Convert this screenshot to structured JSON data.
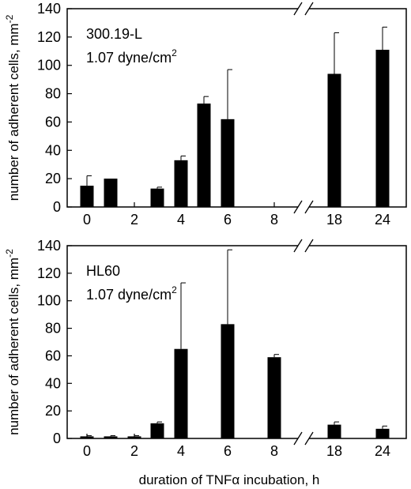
{
  "xlabel": "duration of TNFα incubation, h",
  "chart_data": [
    {
      "type": "bar",
      "annotation": {
        "name": "300.19-L",
        "shear_value": "1.07 dyne/cm",
        "shear_exp": "2"
      },
      "ylabel": {
        "text": "number of adherent cells, mm",
        "sup": "-2"
      },
      "ylim": [
        0,
        140
      ],
      "yticks": [
        "0",
        "20",
        "40",
        "60",
        "80",
        "100",
        "120",
        "140"
      ],
      "xticks": [
        "0",
        "2",
        "4",
        "6",
        "8",
        "18",
        "24"
      ],
      "axis_break": "between 8 and 18",
      "bars": [
        {
          "x": 0,
          "value": 15,
          "err": 7
        },
        {
          "x": 1,
          "value": 20,
          "err": 0
        },
        {
          "x": 3,
          "value": 13,
          "err": 1
        },
        {
          "x": 4,
          "value": 33,
          "err": 3
        },
        {
          "x": 5,
          "value": 73,
          "err": 5
        },
        {
          "x": 6,
          "value": 62,
          "err": 35
        },
        {
          "x": 18,
          "value": 94,
          "err": 29
        },
        {
          "x": 24,
          "value": 111,
          "err": 16
        }
      ]
    },
    {
      "type": "bar",
      "annotation": {
        "name": "HL60",
        "shear_value": "1.07 dyne/cm",
        "shear_exp": "2"
      },
      "ylabel": {
        "text": "number of adherent cells, mm",
        "sup": "-2"
      },
      "ylim": [
        0,
        140
      ],
      "yticks": [
        "0",
        "20",
        "40",
        "60",
        "80",
        "100",
        "120",
        "140"
      ],
      "xticks": [
        "0",
        "2",
        "4",
        "6",
        "8",
        "18",
        "24"
      ],
      "axis_break": "between 8 and 18",
      "bars": [
        {
          "x": 0,
          "value": 1.5,
          "err": 0.5
        },
        {
          "x": 1,
          "value": 1.5,
          "err": 0.5
        },
        {
          "x": 2,
          "value": 1.5,
          "err": 0.5
        },
        {
          "x": 3,
          "value": 11,
          "err": 1
        },
        {
          "x": 4,
          "value": 65,
          "err": 48
        },
        {
          "x": 6,
          "value": 83,
          "err": 54
        },
        {
          "x": 8,
          "value": 59,
          "err": 2
        },
        {
          "x": 18,
          "value": 10,
          "err": 2
        },
        {
          "x": 24,
          "value": 7,
          "err": 2
        }
      ]
    }
  ]
}
